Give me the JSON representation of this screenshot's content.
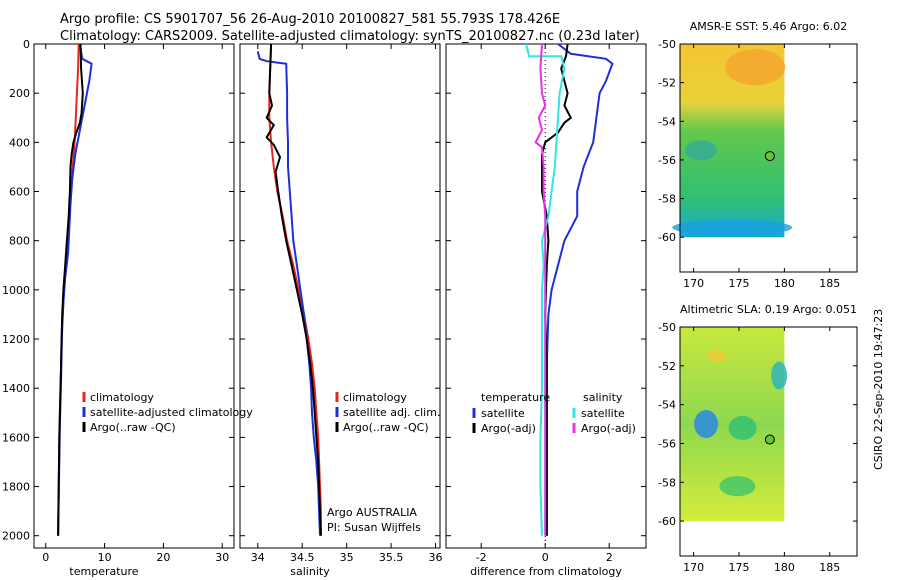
{
  "title_line1": "Argo profile: CS 5901707_56 26-Aug-2010 20100827_581 55.793S 178.426E",
  "title_line2": "Climatology: CARS2009. Satellite-adjusted climatology: synTS_20100827.nc (0.23d later)",
  "side_label": "CSIRO 22-Sep-2010 19:47:23",
  "colors": {
    "climatology": "#e8261a",
    "satellite": "#1c2fd8",
    "argo": "#000000",
    "cyan": "#2ee6e6",
    "magenta": "#e433e4"
  },
  "chart_data": [
    {
      "type": "line",
      "xlabel": "temperature",
      "ylim": [
        2050,
        0
      ],
      "xlim": [
        -2,
        32
      ],
      "xticks": [
        "0",
        "10",
        "20",
        "30"
      ],
      "yticks": [
        "0",
        "200",
        "400",
        "600",
        "800",
        "1000",
        "1200",
        "1400",
        "1600",
        "1800",
        "2000"
      ],
      "legend": [
        "climatology",
        "satellite-adjusted climatology",
        "Argo(..raw -QC)"
      ],
      "series": [
        {
          "name": "climatology",
          "color": "climatology",
          "points": [
            [
              5.6,
              0
            ],
            [
              5.5,
              100
            ],
            [
              5.3,
              200
            ],
            [
              5.1,
              300
            ],
            [
              4.9,
              400
            ],
            [
              4.6,
              500
            ],
            [
              4.3,
              600
            ],
            [
              4.0,
              700
            ],
            [
              3.7,
              800
            ],
            [
              3.4,
              900
            ],
            [
              3.1,
              1000
            ],
            [
              2.9,
              1100
            ],
            [
              2.7,
              1200
            ],
            [
              2.6,
              1300
            ],
            [
              2.5,
              1400
            ],
            [
              2.4,
              1500
            ],
            [
              2.3,
              1600
            ],
            [
              2.2,
              1800
            ],
            [
              2.1,
              2000
            ]
          ]
        },
        {
          "name": "satellite-adjusted climatology",
          "color": "satellite",
          "points": [
            [
              5.8,
              0
            ],
            [
              6.2,
              60
            ],
            [
              7.8,
              80
            ],
            [
              7.4,
              150
            ],
            [
              6.6,
              250
            ],
            [
              5.8,
              350
            ],
            [
              5.0,
              450
            ],
            [
              4.5,
              550
            ],
            [
              4.2,
              650
            ],
            [
              4.0,
              750
            ],
            [
              3.8,
              850
            ],
            [
              3.3,
              950
            ],
            [
              3.0,
              1050
            ],
            [
              2.8,
              1150
            ],
            [
              2.7,
              1250
            ],
            [
              2.6,
              1350
            ],
            [
              2.5,
              1450
            ],
            [
              2.4,
              1550
            ],
            [
              2.3,
              1700
            ],
            [
              2.2,
              1850
            ],
            [
              2.1,
              2000
            ]
          ]
        },
        {
          "name": "Argo(..raw -QC)",
          "color": "argo",
          "points": [
            [
              5.9,
              0
            ],
            [
              6.0,
              100
            ],
            [
              6.3,
              200
            ],
            [
              6.1,
              280
            ],
            [
              5.8,
              320
            ],
            [
              5.2,
              360
            ],
            [
              4.7,
              400
            ],
            [
              4.4,
              450
            ],
            [
              4.2,
              500
            ],
            [
              4.1,
              600
            ],
            [
              3.9,
              700
            ],
            [
              3.6,
              800
            ],
            [
              3.3,
              900
            ],
            [
              3.0,
              1000
            ],
            [
              2.8,
              1100
            ],
            [
              2.7,
              1200
            ],
            [
              2.6,
              1300
            ],
            [
              2.5,
              1400
            ],
            [
              2.4,
              1500
            ],
            [
              2.3,
              1600
            ],
            [
              2.2,
              1800
            ],
            [
              2.1,
              2000
            ]
          ]
        }
      ]
    },
    {
      "type": "line",
      "xlabel": "salinity",
      "ylim": [
        2050,
        0
      ],
      "xlim": [
        33.8,
        36.05
      ],
      "xticks": [
        "34",
        "34.5",
        "35",
        "35.5",
        "36"
      ],
      "legend": [
        "climatology",
        "satellite adj. clim.",
        "Argo(..raw -QC)"
      ],
      "annotation": [
        "Argo AUSTRALIA",
        "PI: Susan Wijffels"
      ],
      "series": [
        {
          "name": "climatology",
          "color": "climatology",
          "points": [
            [
              34.15,
              0
            ],
            [
              34.14,
              100
            ],
            [
              34.13,
              200
            ],
            [
              34.13,
              300
            ],
            [
              34.15,
              400
            ],
            [
              34.18,
              500
            ],
            [
              34.22,
              600
            ],
            [
              34.28,
              700
            ],
            [
              34.33,
              800
            ],
            [
              34.4,
              900
            ],
            [
              34.46,
              1000
            ],
            [
              34.52,
              1100
            ],
            [
              34.57,
              1200
            ],
            [
              34.61,
              1300
            ],
            [
              34.64,
              1400
            ],
            [
              34.66,
              1500
            ],
            [
              34.68,
              1600
            ],
            [
              34.69,
              1700
            ],
            [
              34.7,
              1800
            ],
            [
              34.71,
              1900
            ],
            [
              34.71,
              2000
            ]
          ]
        },
        {
          "name": "satellite adj. clim.",
          "color": "satellite",
          "points": [
            [
              34.0,
              30
            ],
            [
              34.02,
              60
            ],
            [
              34.1,
              70
            ],
            [
              34.32,
              80
            ],
            [
              34.33,
              200
            ],
            [
              34.33,
              300
            ],
            [
              34.34,
              400
            ],
            [
              34.34,
              500
            ],
            [
              34.36,
              600
            ],
            [
              34.38,
              700
            ],
            [
              34.4,
              800
            ],
            [
              34.44,
              900
            ],
            [
              34.48,
              1000
            ],
            [
              34.52,
              1100
            ],
            [
              34.55,
              1200
            ],
            [
              34.58,
              1300
            ],
            [
              34.6,
              1400
            ],
            [
              34.61,
              1500
            ],
            [
              34.63,
              1600
            ],
            [
              34.66,
              1700
            ],
            [
              34.68,
              1800
            ],
            [
              34.69,
              1900
            ],
            [
              34.7,
              2000
            ]
          ]
        },
        {
          "name": "Argo(..raw -QC)",
          "color": "argo",
          "points": [
            [
              34.15,
              0
            ],
            [
              34.14,
              100
            ],
            [
              34.13,
              200
            ],
            [
              34.16,
              250
            ],
            [
              34.1,
              300
            ],
            [
              34.18,
              330
            ],
            [
              34.1,
              380
            ],
            [
              34.18,
              410
            ],
            [
              34.25,
              460
            ],
            [
              34.2,
              520
            ],
            [
              34.23,
              600
            ],
            [
              34.27,
              700
            ],
            [
              34.32,
              800
            ],
            [
              34.38,
              900
            ],
            [
              34.44,
              1000
            ],
            [
              34.5,
              1100
            ],
            [
              34.55,
              1200
            ],
            [
              34.59,
              1300
            ],
            [
              34.62,
              1400
            ],
            [
              34.64,
              1500
            ],
            [
              34.66,
              1600
            ],
            [
              34.68,
              1700
            ],
            [
              34.69,
              1800
            ],
            [
              34.7,
              1900
            ],
            [
              34.71,
              2000
            ]
          ]
        }
      ]
    },
    {
      "type": "line",
      "xlabel": "difference from climatology",
      "ylim": [
        2050,
        0
      ],
      "xlim": [
        -3.1,
        3.15
      ],
      "xticks": [
        "-2",
        "0",
        "2"
      ],
      "legend_headers": [
        "temperature",
        "salinity"
      ],
      "legend": [
        "satellite",
        "Argo(-adj)",
        "satellite",
        "Argo(-adj)"
      ],
      "series": [
        {
          "name": "temperature satellite",
          "color": "satellite",
          "points": [
            [
              0.4,
              0
            ],
            [
              0.8,
              40
            ],
            [
              1.9,
              60
            ],
            [
              2.1,
              80
            ],
            [
              1.9,
              150
            ],
            [
              1.7,
              200
            ],
            [
              1.6,
              300
            ],
            [
              1.5,
              400
            ],
            [
              1.2,
              500
            ],
            [
              1.0,
              600
            ],
            [
              1.0,
              700
            ],
            [
              0.8,
              750
            ],
            [
              0.6,
              800
            ],
            [
              0.4,
              900
            ],
            [
              0.2,
              1000
            ],
            [
              0.1,
              1100
            ],
            [
              0.05,
              1300
            ],
            [
              0.05,
              1500
            ],
            [
              0.05,
              2000
            ]
          ]
        },
        {
          "name": "temperature Argo(-adj)",
          "color": "argo",
          "points": [
            [
              0.7,
              0
            ],
            [
              0.65,
              50
            ],
            [
              0.5,
              100
            ],
            [
              0.7,
              200
            ],
            [
              0.6,
              250
            ],
            [
              0.8,
              300
            ],
            [
              0.6,
              320
            ],
            [
              0.4,
              360
            ],
            [
              0.0,
              400
            ],
            [
              -0.1,
              450
            ],
            [
              -0.1,
              600
            ],
            [
              0.05,
              700
            ],
            [
              0.1,
              800
            ],
            [
              0.05,
              900
            ],
            [
              0.0,
              1100
            ],
            [
              0.05,
              1300
            ],
            [
              0.05,
              1600
            ],
            [
              0.05,
              2000
            ]
          ]
        },
        {
          "name": "salinity satellite",
          "color": "cyan",
          "points": [
            [
              -0.6,
              0
            ],
            [
              -0.5,
              50
            ],
            [
              0.5,
              50
            ],
            [
              0.6,
              100
            ],
            [
              0.45,
              200
            ],
            [
              0.4,
              300
            ],
            [
              0.35,
              400
            ],
            [
              0.3,
              500
            ],
            [
              0.2,
              600
            ],
            [
              0.1,
              700
            ],
            [
              -0.1,
              800
            ],
            [
              -0.05,
              900
            ],
            [
              -0.1,
              1000
            ],
            [
              -0.1,
              1200
            ],
            [
              -0.1,
              1400
            ],
            [
              -0.15,
              1600
            ],
            [
              -0.15,
              1800
            ],
            [
              -0.1,
              2000
            ]
          ]
        },
        {
          "name": "salinity Argo(-adj)",
          "color": "magenta",
          "points": [
            [
              -0.1,
              0
            ],
            [
              -0.15,
              100
            ],
            [
              -0.1,
              200
            ],
            [
              0.0,
              250
            ],
            [
              -0.2,
              300
            ],
            [
              -0.1,
              350
            ],
            [
              -0.3,
              400
            ],
            [
              -0.1,
              420
            ],
            [
              -0.05,
              500
            ],
            [
              -0.05,
              600
            ],
            [
              0.0,
              700
            ],
            [
              0.0,
              800
            ],
            [
              0.0,
              1000
            ],
            [
              0.0,
              1200
            ],
            [
              0.0,
              1500
            ],
            [
              0.0,
              2000
            ]
          ]
        }
      ]
    }
  ],
  "maps": [
    {
      "title": "AMSR-E SST: 5.46 Argo: 6.02",
      "xticks": [
        "170",
        "175",
        "180",
        "185"
      ],
      "yticks": [
        "-50",
        "-52",
        "-54",
        "-56",
        "-58",
        "-60"
      ],
      "marker_lon": 178.4,
      "marker_lat": -55.8
    },
    {
      "title": "Altimetric SLA: 0.19 Argo: 0.051",
      "xticks": [
        "170",
        "175",
        "180",
        "185"
      ],
      "yticks": [
        "-50",
        "-52",
        "-54",
        "-56",
        "-58",
        "-60"
      ],
      "marker_lon": 178.4,
      "marker_lat": -55.8
    }
  ]
}
